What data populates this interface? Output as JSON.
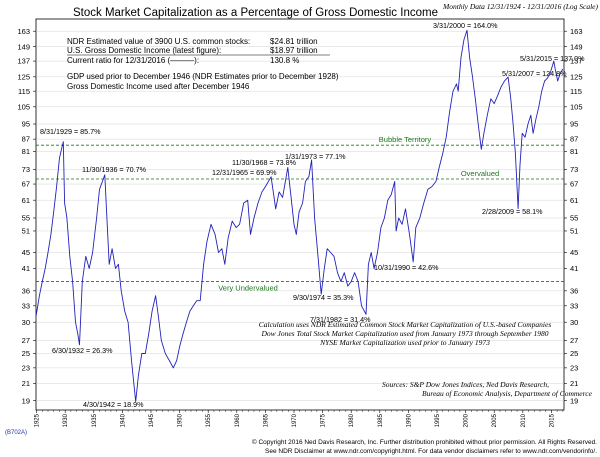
{
  "header": {
    "title": "Stock Market Capitalization as a Percentage of Gross Domestic Income",
    "subtitle": "Monthly Data 12/31/1924 - 12/31/2016 (Log Scale)"
  },
  "info_box": {
    "rows": [
      {
        "label": "NDR Estimated value of 3900 U.S. common stocks:",
        "value": "$24.81 trillion"
      },
      {
        "label": "U.S. Gross Domestic Income (latest figure):",
        "value": "$18.97 trillion"
      },
      {
        "label": "Current ratio for 12/31/2016 (———):",
        "value": "130.8 %"
      }
    ],
    "notes": [
      "GDP used prior to December 1946 (NDR Estimates prior to December 1928)",
      "Gross Domestic Income used after December 1946"
    ]
  },
  "footnotes": {
    "calc": [
      "Calculation uses NDR Estimated Common Stock Market Capitalization of U.S.-based Companies",
      "Dow Jones Total Stock Market Capitalization used from January 1973 through September 1980",
      "NYSE Market Capitalization used prior to January 1973"
    ],
    "sources": [
      "Sources:  S&P Dow Jones Indices, Ned Davis Research,",
      "Bureau of Economic Analysis, Department of Commerce"
    ]
  },
  "footer": {
    "code": "(B702A)",
    "line1": "© Copyright 2016 Ned Davis Research, Inc. Further distribution prohibited without prior permission. All Rights Reserved.",
    "line2": "See NDR Disclaimer at www.ndr.com/copyright.html. For data vendor disclaimers refer to www.ndr.com/vendorinfo/."
  },
  "colors": {
    "series": "#2222bb",
    "bubble": "#1a7a1a",
    "grid": "#cccccc"
  },
  "chart_data": {
    "type": "line",
    "title": "Stock Market Capitalization as a Percentage of Gross Domestic Income",
    "y_scale": "log",
    "ylim": [
      18,
      175
    ],
    "xlim": [
      1924.9,
      2017.2
    ],
    "y_ticks": [
      19,
      21,
      23,
      25,
      27,
      30,
      33,
      36,
      41,
      45,
      51,
      55,
      61,
      67,
      73,
      81,
      87,
      95,
      105,
      115,
      125,
      137,
      149,
      163
    ],
    "x_ticks": [
      1925,
      1930,
      1935,
      1940,
      1945,
      1950,
      1955,
      1960,
      1965,
      1970,
      1975,
      1980,
      1985,
      1990,
      1995,
      2000,
      2005,
      2010,
      2015
    ],
    "reference_lines": [
      {
        "label": "Bubble Territory",
        "value": 84
      },
      {
        "label": "Overvalued",
        "value": 69
      },
      {
        "label": "Very Undervalued",
        "value": 38
      }
    ],
    "annotations": [
      {
        "text": "8/31/1929 = 85.7%",
        "x": 1929.67,
        "y": 85.7
      },
      {
        "text": "11/30/1936 = 70.7%",
        "x": 1936.92,
        "y": 70.7
      },
      {
        "text": "6/30/1932 = 26.3%",
        "x": 1932.5,
        "y": 26.3
      },
      {
        "text": "4/30/1942 = 18.9%",
        "x": 1942.33,
        "y": 18.9
      },
      {
        "text": "11/30/1968 = 73.8%",
        "x": 1968.92,
        "y": 73.8
      },
      {
        "text": "12/31/1965 = 69.9%",
        "x": 1966.0,
        "y": 69.9
      },
      {
        "text": "1/31/1973 = 77.1%",
        "x": 1973.08,
        "y": 77.1
      },
      {
        "text": "9/30/1974 = 35.3%",
        "x": 1974.75,
        "y": 35.3
      },
      {
        "text": "7/31/1982 = 31.4%",
        "x": 1982.58,
        "y": 31.4
      },
      {
        "text": "10/31/1990 = 42.6%",
        "x": 1990.83,
        "y": 42.6
      },
      {
        "text": "3/31/2000 = 164.0%",
        "x": 2000.25,
        "y": 164.0
      },
      {
        "text": "5/31/2007 = 124.8%",
        "x": 2007.42,
        "y": 124.8
      },
      {
        "text": "5/31/2015 = 137.0%",
        "x": 2015.42,
        "y": 137.0
      },
      {
        "text": "2/28/2009 = 58.1%",
        "x": 2009.17,
        "y": 58.1
      }
    ],
    "series": [
      {
        "x": [
          1924.9,
          1925.5,
          1926.0,
          1926.5,
          1927.0,
          1927.5,
          1928.0,
          1928.5,
          1929.0,
          1929.67,
          1929.9,
          1930.3,
          1930.8,
          1931.3,
          1931.8,
          1932.2,
          1932.5,
          1933.0,
          1933.6,
          1934.2,
          1934.8,
          1935.5,
          1936.0,
          1936.5,
          1936.92,
          1937.3,
          1937.7,
          1938.2,
          1938.8,
          1939.3,
          1939.8,
          1940.4,
          1941.0,
          1941.6,
          1942.33,
          1942.8,
          1943.4,
          1944.0,
          1944.6,
          1945.2,
          1945.8,
          1946.3,
          1946.8,
          1947.5,
          1948.2,
          1948.9,
          1949.5,
          1950.0,
          1950.6,
          1951.2,
          1951.8,
          1952.4,
          1953.0,
          1953.6,
          1954.2,
          1954.8,
          1955.5,
          1956.2,
          1956.8,
          1957.4,
          1957.9,
          1958.5,
          1959.2,
          1959.9,
          1960.5,
          1961.2,
          1961.9,
          1962.4,
          1963.0,
          1963.7,
          1964.4,
          1965.0,
          1966.0,
          1966.8,
          1967.4,
          1968.0,
          1968.92,
          1969.5,
          1970.0,
          1970.4,
          1970.9,
          1971.5,
          1972.0,
          1972.6,
          1973.08,
          1973.6,
          1974.2,
          1974.75,
          1975.3,
          1975.8,
          1976.4,
          1977.0,
          1977.6,
          1978.2,
          1978.8,
          1979.4,
          1980.0,
          1980.6,
          1981.2,
          1981.8,
          1982.58,
          1983.0,
          1983.5,
          1984.0,
          1984.6,
          1985.2,
          1985.8,
          1986.4,
          1987.0,
          1987.6,
          1987.85,
          1988.3,
          1988.9,
          1989.5,
          1990.2,
          1990.83,
          1991.3,
          1992.0,
          1992.7,
          1993.4,
          1994.1,
          1994.8,
          1995.4,
          1996.0,
          1996.6,
          1997.2,
          1997.8,
          1998.4,
          1998.7,
          1999.2,
          1999.7,
          2000.25,
          2000.7,
          2001.2,
          2001.7,
          2002.2,
          2002.75,
          2003.2,
          2003.8,
          2004.4,
          2005.0,
          2005.6,
          2006.2,
          2006.8,
          2007.42,
          2007.9,
          2008.3,
          2008.7,
          2009.17,
          2009.5,
          2009.9,
          2010.4,
          2010.9,
          2011.4,
          2011.8,
          2012.3,
          2012.8,
          2013.3,
          2013.8,
          2014.3,
          2014.8,
          2015.42,
          2015.7,
          2016.1,
          2016.5,
          2016.99
        ],
        "values": [
          31,
          35,
          38,
          41,
          45,
          50,
          57,
          66,
          78,
          85.7,
          60,
          55,
          44,
          38,
          30,
          28,
          26.3,
          38,
          44,
          41,
          45,
          55,
          65,
          68,
          70.7,
          55,
          42,
          46,
          41,
          42,
          36,
          32,
          30,
          24,
          18.9,
          22,
          25,
          25,
          28,
          32,
          35,
          31,
          27,
          25,
          24,
          23,
          24,
          26,
          28,
          30,
          32,
          33,
          34,
          34,
          42,
          48,
          53,
          50,
          45,
          46,
          42,
          49,
          54,
          52,
          53,
          60,
          61,
          50,
          55,
          60,
          64,
          66,
          69.9,
          58,
          64,
          62,
          73.8,
          62,
          53,
          50,
          57,
          60,
          68,
          70,
          77.1,
          55,
          44,
          35.3,
          41,
          46,
          45,
          44,
          40,
          38,
          40,
          37,
          38,
          40,
          38,
          33,
          31.4,
          42,
          45,
          41,
          45,
          52,
          55,
          61,
          63,
          68,
          51,
          55,
          53,
          58,
          50,
          42.6,
          52,
          55,
          60,
          65,
          66,
          68,
          74,
          80,
          88,
          102,
          115,
          120,
          115,
          140,
          155,
          164.0,
          140,
          125,
          110,
          95,
          82,
          90,
          100,
          110,
          107,
          112,
          118,
          122,
          124.8,
          110,
          95,
          80,
          58.1,
          75,
          90,
          88,
          95,
          100,
          90,
          98,
          105,
          115,
          122,
          124,
          128,
          137.0,
          130,
          122,
          127,
          130.8
        ]
      }
    ]
  }
}
